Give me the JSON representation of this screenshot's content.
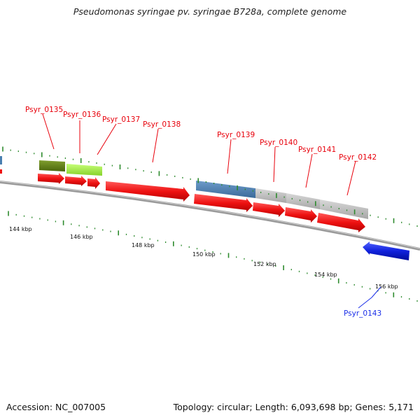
{
  "title": "Pseudomonas syringae pv. syringae B728a, complete genome",
  "footer": {
    "accession": "Accession: NC_007005",
    "summary": "Topology: circular; Length: 6,093,698 bp; Genes: 5,171"
  },
  "scale_labels": [
    "144 kbp",
    "146 kbp",
    "148 kbp",
    "150 kbp",
    "152 kbp",
    "154 kbp",
    "156 kbp"
  ],
  "gene_labels": [
    {
      "text": "Psyr_0135",
      "color": "#e8000b"
    },
    {
      "text": "Psyr_0136",
      "color": "#e8000b"
    },
    {
      "text": "Psyr_0137",
      "color": "#e8000b"
    },
    {
      "text": "Psyr_0138",
      "color": "#e8000b"
    },
    {
      "text": "Psyr_0139",
      "color": "#e8000b"
    },
    {
      "text": "Psyr_0140",
      "color": "#e8000b"
    },
    {
      "text": "Psyr_0141",
      "color": "#e8000b"
    },
    {
      "text": "Psyr_0142",
      "color": "#e8000b"
    },
    {
      "text": "Psyr_0143",
      "color": "#1a2ee8"
    }
  ],
  "colors": {
    "cds_forward": "#ee1111",
    "cds_reverse": "#1122dd",
    "cog_dark_olive": "#5a7a12",
    "cog_light_green": "#a8f24a",
    "cog_steel_blue": "#4a7fb0",
    "cog_grey": "#b8b8b8",
    "backbone": "#8a8a8a",
    "ticks": "#2e8b2e"
  }
}
